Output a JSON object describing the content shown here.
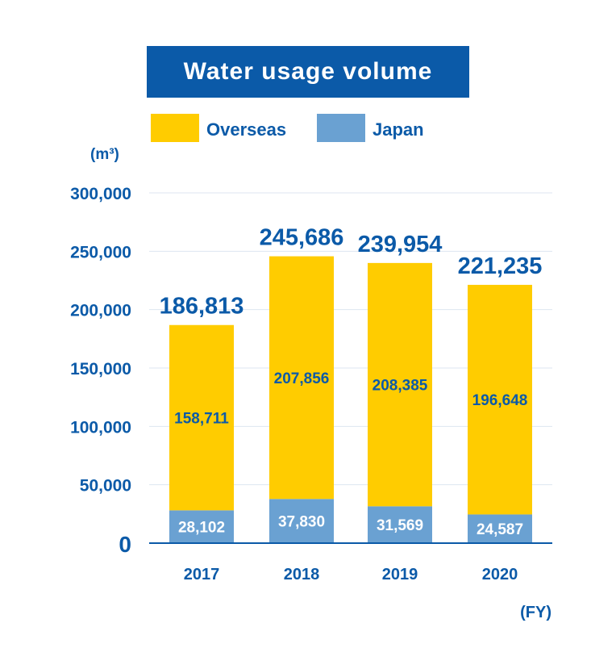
{
  "title": "Water usage volume",
  "y_unit": "(m³)",
  "x_unit": "(FY)",
  "legend": [
    {
      "label": "Overseas",
      "color": "#ffcc00"
    },
    {
      "label": "Japan",
      "color": "#6aa1d2"
    }
  ],
  "chart_data": {
    "type": "bar",
    "stacked": true,
    "title": "Water usage volume",
    "categories": [
      "2017",
      "2018",
      "2019",
      "2020"
    ],
    "series": [
      {
        "name": "Japan",
        "color": "#6aa1d2",
        "values": [
          28102,
          37830,
          31569,
          24587
        ]
      },
      {
        "name": "Overseas",
        "color": "#ffcc00",
        "values": [
          158711,
          207856,
          208385,
          196648
        ]
      }
    ],
    "totals": [
      186813,
      245686,
      239954,
      221235
    ],
    "total_labels": [
      "186,813",
      "245,686",
      "239,954",
      "221,235"
    ],
    "japan_labels": [
      "28,102",
      "37,830",
      "31,569",
      "24,587"
    ],
    "overseas_labels": [
      "158,711",
      "207,856",
      "208,385",
      "196,648"
    ],
    "y_ticks": [
      0,
      50000,
      100000,
      150000,
      200000,
      250000,
      300000
    ],
    "y_tick_labels": [
      "0",
      "50,000",
      "100,000",
      "150,000",
      "200,000",
      "250,000",
      "300,000"
    ],
    "ylim": [
      0,
      300000
    ],
    "xlabel": "(FY)",
    "ylabel": "(m³)",
    "grid": true,
    "legend_position": "top"
  }
}
